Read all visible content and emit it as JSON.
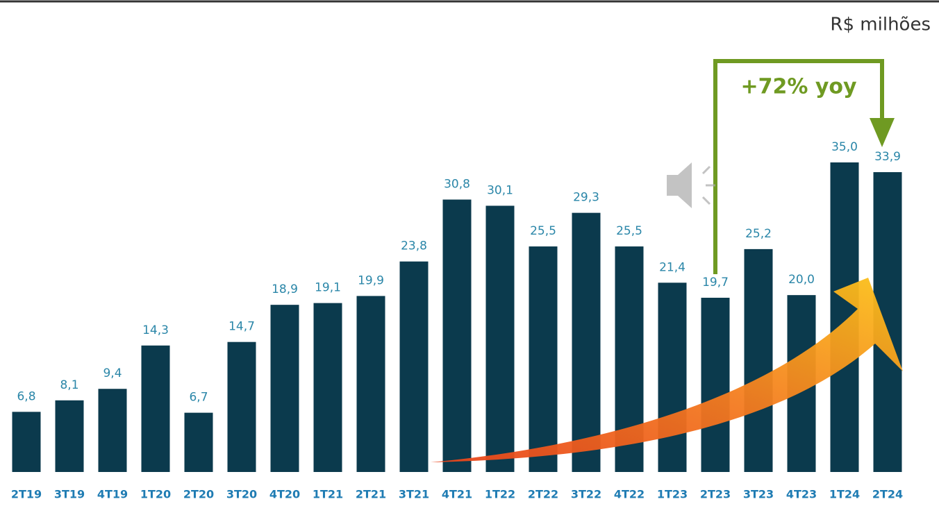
{
  "chart_data": {
    "type": "bar",
    "unit_label": "R$ milhões",
    "annotation": "+72% yoy",
    "categories": [
      "2T19",
      "3T19",
      "4T19",
      "1T20",
      "2T20",
      "3T20",
      "4T20",
      "1T21",
      "2T21",
      "3T21",
      "4T21",
      "1T22",
      "2T22",
      "3T22",
      "4T22",
      "1T23",
      "2T23",
      "3T23",
      "4T23",
      "1T24",
      "2T24"
    ],
    "values": [
      6.8,
      8.1,
      9.4,
      14.3,
      6.7,
      14.7,
      18.9,
      19.1,
      19.9,
      23.8,
      30.8,
      30.1,
      25.5,
      29.3,
      25.5,
      21.4,
      19.7,
      25.2,
      20.0,
      35.0,
      33.9
    ],
    "value_labels": [
      "6,8",
      "8,1",
      "9,4",
      "14,3",
      "6,7",
      "14,7",
      "18,9",
      "19,1",
      "19,9",
      "23,8",
      "30,8",
      "30,1",
      "25,5",
      "29,3",
      "25,5",
      "21,4",
      "19,7",
      "25,2",
      "20,0",
      "35,0",
      "33,9"
    ],
    "color": "#0b3a4d",
    "ylim": [
      0,
      35
    ]
  }
}
